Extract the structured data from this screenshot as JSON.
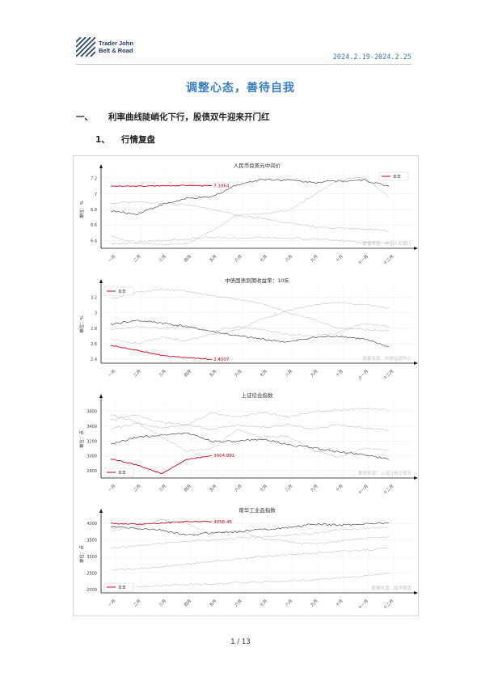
{
  "header": {
    "company_line1": "Trader John",
    "company_line2": "Belt & Road",
    "date_range": "2024.2.19-2024.2.25"
  },
  "title": "调整心态，善待自我",
  "section": {
    "num": "一、",
    "text": "利率曲线陡峭化下行，股债双牛迎来开门红"
  },
  "subsection": {
    "num": "1、",
    "text": "行情复盘"
  },
  "months": [
    "一月",
    "二月",
    "三月",
    "四月",
    "五月",
    "六月",
    "七月",
    "八月",
    "九月",
    "十月",
    "十一月",
    "十二月"
  ],
  "colors": {
    "current": "#d0021b",
    "prior": "#333333",
    "older": "#b5b5b5",
    "accent": "#3a7fc1"
  },
  "chart_data": [
    {
      "type": "line",
      "title": "人民币兑美元中间价",
      "ylabel": "单位：%",
      "yticks": [
        6.4,
        6.6,
        6.8,
        7.0,
        7.2
      ],
      "ylim": [
        6.3,
        7.3
      ],
      "legend": "本年",
      "legend_position": "top-right",
      "source": "数据来源：中国人民银行",
      "last_label": "7.1064",
      "series": [
        {
          "role": "current",
          "values": [
            7.1,
            7.1,
            7.105,
            7.11,
            7.106
          ]
        },
        {
          "role": "prior",
          "values": [
            6.78,
            6.74,
            6.86,
            6.94,
            6.96,
            7.12,
            7.19,
            7.18,
            7.15,
            7.17,
            7.18,
            7.1
          ]
        },
        {
          "role": "older",
          "values": [
            6.36,
            6.37,
            6.35,
            6.36,
            6.52,
            6.73,
            6.74,
            6.79,
            6.98,
            7.18,
            7.22,
            6.96
          ]
        },
        {
          "role": "older",
          "values": [
            6.45,
            6.38,
            6.4,
            6.42,
            6.44,
            6.43,
            6.44,
            6.43,
            6.42,
            6.4,
            6.38,
            6.37
          ]
        },
        {
          "role": "older",
          "values": [
            6.88,
            6.9,
            6.88,
            6.86,
            6.8,
            6.73,
            6.68,
            6.63,
            6.58,
            6.56,
            6.55,
            6.52
          ]
        }
      ]
    },
    {
      "type": "line",
      "title": "中债国债到期收益率：10年",
      "ylabel": "单位：%",
      "yticks": [
        2.4,
        2.6,
        2.8,
        3.0,
        3.2
      ],
      "ylim": [
        2.35,
        3.35
      ],
      "legend": "本年",
      "legend_position": "top-left",
      "source": "数据来源：中债估值中心",
      "last_label": "2.4007",
      "series": [
        {
          "role": "current",
          "values": [
            2.58,
            2.52,
            2.45,
            2.42,
            2.4
          ]
        },
        {
          "role": "prior",
          "values": [
            2.85,
            2.9,
            2.87,
            2.82,
            2.76,
            2.7,
            2.66,
            2.62,
            2.68,
            2.7,
            2.66,
            2.56
          ]
        },
        {
          "role": "older",
          "values": [
            3.18,
            3.26,
            3.3,
            3.28,
            3.22,
            3.17,
            3.12,
            3.0,
            2.92,
            2.8,
            2.78,
            2.77
          ]
        },
        {
          "role": "older",
          "values": [
            2.78,
            2.82,
            2.8,
            2.83,
            2.76,
            2.82,
            2.78,
            2.72,
            2.7,
            2.74,
            2.86,
            2.82
          ]
        },
        {
          "role": "older",
          "values": [
            2.66,
            2.6,
            2.68,
            2.64,
            2.72,
            2.78,
            2.92,
            3.02,
            3.1,
            3.14,
            3.1,
            3.06
          ]
        }
      ]
    },
    {
      "type": "line",
      "title": "上证综合指数",
      "ylabel": "单位：点",
      "yticks": [
        2800,
        3000,
        3200,
        3400,
        3600
      ],
      "ylim": [
        2700,
        3750
      ],
      "legend": "本年",
      "legend_position": "bottom-left",
      "source": "数据来源：上海证券交易所",
      "last_label": "3004.881",
      "series": [
        {
          "role": "current",
          "values": [
            2960,
            2880,
            2760,
            2950,
            3005
          ]
        },
        {
          "role": "prior",
          "values": [
            3150,
            3250,
            3280,
            3310,
            3200,
            3190,
            3230,
            3150,
            3110,
            3050,
            3020,
            2950
          ]
        },
        {
          "role": "older",
          "values": [
            3560,
            3460,
            3260,
            3060,
            3100,
            3350,
            3260,
            3260,
            3080,
            2980,
            3100,
            3080
          ]
        },
        {
          "role": "older",
          "values": [
            3480,
            3550,
            3450,
            3420,
            3580,
            3520,
            3590,
            3520,
            3600,
            3620,
            3640,
            3620
          ]
        },
        {
          "role": "older",
          "values": [
            3360,
            3440,
            3380,
            3420,
            3360,
            3420,
            3380,
            3420,
            3360,
            3420,
            3380,
            3350
          ]
        }
      ]
    },
    {
      "type": "line",
      "title": "南华工业品指数",
      "ylabel": "单位：点",
      "yticks": [
        2000,
        2500,
        3000,
        3500,
        4000
      ],
      "ylim": [
        1900,
        4250
      ],
      "legend": "本年",
      "legend_position": "bottom-left",
      "source": "数据来源：南华期货",
      "last_label": "4058.46",
      "series": [
        {
          "role": "current",
          "values": [
            4000,
            3980,
            4010,
            4060,
            4058
          ]
        },
        {
          "role": "prior",
          "values": [
            3900,
            3850,
            3800,
            3640,
            3720,
            3750,
            3820,
            3870,
            3980,
            3950,
            3990,
            4020
          ]
        },
        {
          "role": "older",
          "values": [
            3780,
            3900,
            4100,
            4000,
            3700,
            3800,
            3550,
            3450,
            3380,
            3450,
            3550,
            3600
          ]
        },
        {
          "role": "older",
          "values": [
            3250,
            3320,
            3400,
            3460,
            3500,
            3550,
            3600,
            3650,
            3700,
            3800,
            3850,
            3900
          ]
        },
        {
          "role": "older",
          "values": [
            2600,
            2620,
            2680,
            2780,
            2850,
            2920,
            3000,
            3050,
            3100,
            3150,
            3200,
            3250
          ]
        },
        {
          "role": "older",
          "values": [
            2050,
            2080,
            2120,
            2150,
            2180,
            2200,
            2230,
            2260,
            2300,
            2350,
            2400,
            2500
          ]
        }
      ]
    }
  ],
  "page_number": "1 / 13"
}
